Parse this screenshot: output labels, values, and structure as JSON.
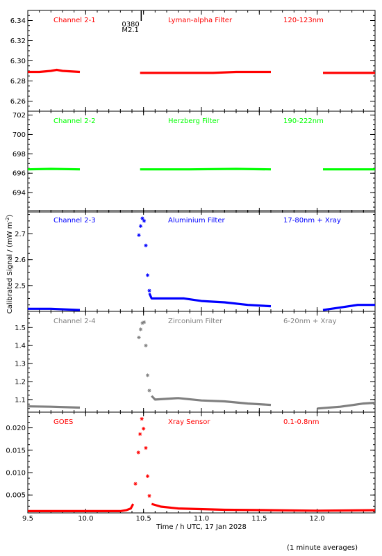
{
  "figure": {
    "ylabel": "Calibrated Signal / (mW m",
    "ylabel_sup": "-2",
    "ylabel_end": ")",
    "xlabel": "Time / h UTC, 17 Jan 2028",
    "footer": "(1 minute averages)",
    "event_marker": {
      "x": 10.48,
      "line1": "0380",
      "line2": "M2.1"
    }
  },
  "x_axis": {
    "range": [
      9.5,
      12.5
    ],
    "ticks": [
      9.5,
      10.0,
      10.5,
      11.0,
      11.5,
      12.0
    ],
    "tick_labels": [
      "9.5",
      "10.0",
      "10.5",
      "11.0",
      "11.5",
      "12.0"
    ]
  },
  "colors": {
    "red": "#ff0000",
    "green": "#00ff00",
    "blue": "#0000ff",
    "grey": "#808080",
    "frame": "#000000"
  },
  "chart_data": [
    {
      "type": "scatter",
      "panel": "channel-2-1",
      "channel": "Channel 2-1",
      "filter": "Lyman-alpha Filter",
      "band": "120-123nm",
      "color": "#ff0000",
      "ylim": [
        6.25,
        6.35
      ],
      "yticks": [
        6.26,
        6.28,
        6.3,
        6.32,
        6.34
      ],
      "ytick_labels": [
        "6.26",
        "6.28",
        "6.30",
        "6.32",
        "6.34"
      ],
      "segments": [
        [
          [
            9.5,
            6.289
          ],
          [
            9.6,
            6.289
          ],
          [
            9.7,
            6.29
          ],
          [
            9.75,
            6.291
          ],
          [
            9.8,
            6.29
          ],
          [
            9.95,
            6.289
          ]
        ],
        [
          [
            10.47,
            6.288
          ],
          [
            10.8,
            6.288
          ],
          [
            11.1,
            6.288
          ],
          [
            11.3,
            6.289
          ],
          [
            11.6,
            6.289
          ]
        ],
        [
          [
            12.05,
            6.288
          ],
          [
            12.3,
            6.288
          ],
          [
            12.5,
            6.288
          ]
        ]
      ]
    },
    {
      "type": "scatter",
      "panel": "channel-2-2",
      "channel": "Channel 2-2",
      "filter": "Herzberg Filter",
      "band": "190-222nm",
      "color": "#00ff00",
      "ylim": [
        692.0,
        702.4
      ],
      "yticks": [
        694,
        696,
        698,
        700,
        702
      ],
      "ytick_labels": [
        "694",
        "696",
        "698",
        "700",
        "702"
      ],
      "segments": [
        [
          [
            9.5,
            696.4
          ],
          [
            9.7,
            696.45
          ],
          [
            9.95,
            696.4
          ]
        ],
        [
          [
            10.47,
            696.4
          ],
          [
            10.9,
            696.4
          ],
          [
            11.3,
            696.45
          ],
          [
            11.6,
            696.4
          ]
        ],
        [
          [
            12.05,
            696.4
          ],
          [
            12.5,
            696.4
          ]
        ]
      ]
    },
    {
      "type": "scatter",
      "panel": "channel-2-3",
      "channel": "Channel 2-3",
      "filter": "Aluminium Filter",
      "band": "17-80nm + Xray",
      "color": "#0000ff",
      "ylim": [
        2.4,
        2.79
      ],
      "yticks": [
        2.5,
        2.6,
        2.7
      ],
      "ytick_labels": [
        "2.5",
        "2.6",
        "2.7"
      ],
      "segments": [
        [
          [
            9.5,
            2.41
          ],
          [
            9.7,
            2.41
          ],
          [
            9.95,
            2.405
          ]
        ],
        [
          [
            10.55,
            2.47
          ],
          [
            10.57,
            2.45
          ],
          [
            10.7,
            2.45
          ],
          [
            10.85,
            2.45
          ],
          [
            11.0,
            2.44
          ],
          [
            11.2,
            2.435
          ],
          [
            11.4,
            2.425
          ],
          [
            11.6,
            2.42
          ]
        ],
        [
          [
            12.05,
            2.405
          ],
          [
            12.2,
            2.415
          ],
          [
            12.35,
            2.425
          ],
          [
            12.5,
            2.425
          ]
        ]
      ],
      "points": [
        [
          10.46,
          2.695
        ],
        [
          10.475,
          2.73
        ],
        [
          10.49,
          2.76
        ],
        [
          10.505,
          2.75
        ],
        [
          10.52,
          2.655
        ],
        [
          10.535,
          2.54
        ],
        [
          10.55,
          2.48
        ]
      ]
    },
    {
      "type": "scatter",
      "panel": "channel-2-4",
      "channel": "Channel 2-4",
      "filter": "Zirconium Filter",
      "band": "6-20nm + Xray",
      "color": "#808080",
      "ylim": [
        1.03,
        1.59
      ],
      "yticks": [
        1.1,
        1.2,
        1.3,
        1.4,
        1.5
      ],
      "ytick_labels": [
        "1.1",
        "1.2",
        "1.3",
        "1.4",
        "1.5"
      ],
      "segments": [
        [
          [
            9.5,
            1.062
          ],
          [
            9.7,
            1.06
          ],
          [
            9.95,
            1.055
          ]
        ],
        [
          [
            10.57,
            1.12
          ],
          [
            10.6,
            1.1
          ],
          [
            10.8,
            1.108
          ],
          [
            11.0,
            1.095
          ],
          [
            11.2,
            1.09
          ],
          [
            11.4,
            1.078
          ],
          [
            11.6,
            1.07
          ]
        ],
        [
          [
            12.0,
            1.05
          ],
          [
            12.2,
            1.06
          ],
          [
            12.4,
            1.078
          ],
          [
            12.5,
            1.082
          ]
        ]
      ],
      "points": [
        [
          10.46,
          1.445
        ],
        [
          10.475,
          1.49
        ],
        [
          10.49,
          1.525
        ],
        [
          10.505,
          1.53
        ],
        [
          10.52,
          1.4
        ],
        [
          10.535,
          1.235
        ],
        [
          10.55,
          1.15
        ]
      ]
    },
    {
      "type": "scatter",
      "panel": "goes",
      "channel": "GOES",
      "filter": "Xray Sensor",
      "band": "0.1-0.8nm",
      "color": "#ff0000",
      "ylim": [
        0.001,
        0.0235
      ],
      "yticks": [
        0.005,
        0.01,
        0.015,
        0.02
      ],
      "ytick_labels": [
        "0.005",
        "0.010",
        "0.015",
        "0.020"
      ],
      "segments": [
        [
          [
            9.5,
            0.0014
          ],
          [
            10.3,
            0.0014
          ],
          [
            10.35,
            0.0016
          ],
          [
            10.39,
            0.002
          ],
          [
            10.41,
            0.003
          ]
        ],
        [
          [
            10.57,
            0.003
          ],
          [
            10.65,
            0.0024
          ],
          [
            10.8,
            0.002
          ],
          [
            11.2,
            0.0017
          ],
          [
            11.6,
            0.0016
          ],
          [
            12.0,
            0.0015
          ],
          [
            12.5,
            0.0016
          ]
        ]
      ],
      "points": [
        [
          10.43,
          0.0075
        ],
        [
          10.455,
          0.0145
        ],
        [
          10.47,
          0.0186
        ],
        [
          10.485,
          0.022
        ],
        [
          10.5,
          0.0198
        ],
        [
          10.52,
          0.0155
        ],
        [
          10.535,
          0.0092
        ],
        [
          10.55,
          0.0048
        ]
      ]
    }
  ]
}
